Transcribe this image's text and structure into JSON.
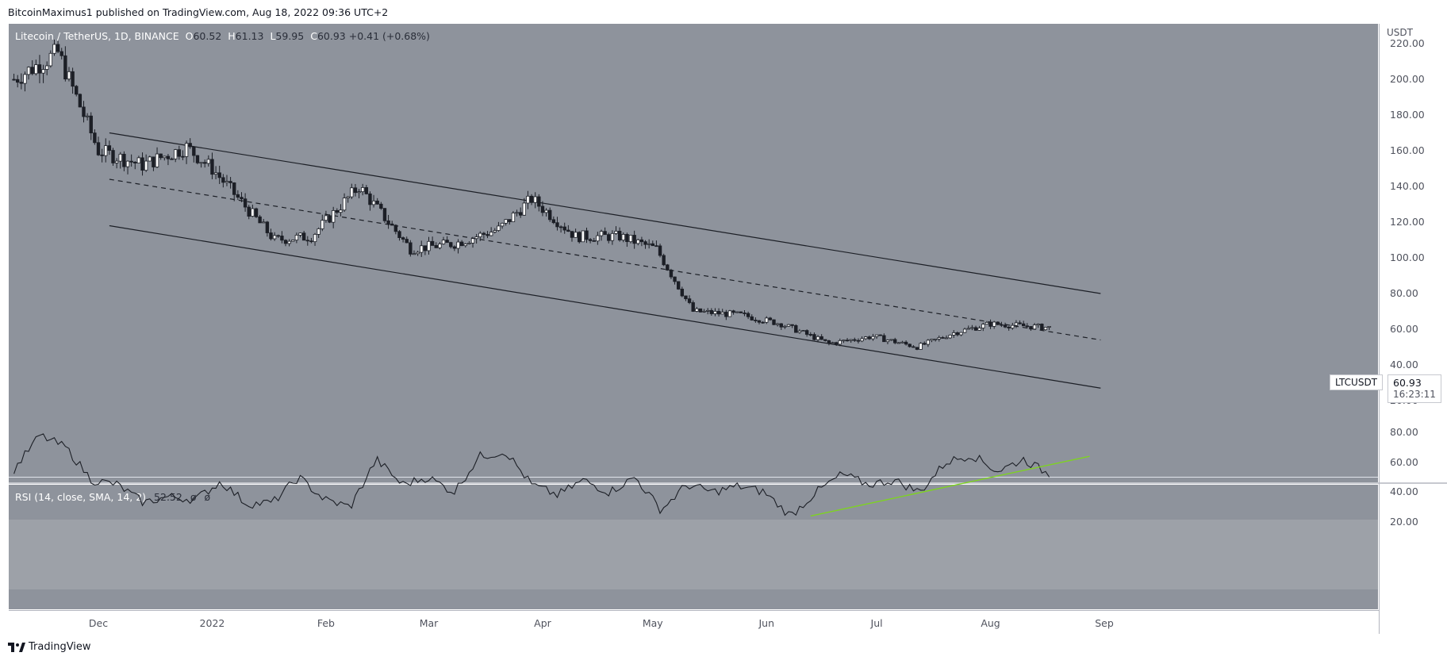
{
  "header": {
    "publisher_text": "BitcoinMaximus1 published on TradingView.com, Aug 18, 2022 09:36 UTC+2"
  },
  "chart": {
    "symbol_text": "Litecoin / TetherUS, 1D, BINANCE",
    "ohlc": [
      {
        "k": "O",
        "v": "60.52"
      },
      {
        "k": "H",
        "v": "61.13"
      },
      {
        "k": "L",
        "v": "59.95"
      },
      {
        "k": "C",
        "v": "60.93"
      },
      {
        "k": "",
        "v": "+0.41 (+0.68%)"
      }
    ],
    "unit": "USDT",
    "price_ticks": [
      "220.00",
      "200.00",
      "180.00",
      "160.00",
      "140.00",
      "120.00",
      "100.00",
      "80.00",
      "60.00",
      "40.00",
      "20.00"
    ],
    "symbol_tag": "LTCUSDT",
    "last_price": "60.93",
    "countdown": "16:23:11",
    "colors": {
      "panel": "#8e939c",
      "rsi_band": "#9da1a8",
      "candle": "#1c1f26",
      "trendline": "#7ed321"
    }
  },
  "rsi": {
    "legend": "RSI (14, close, SMA, 14, 2)",
    "value": "52.52",
    "extra_1": "ø",
    "extra_2": "ø",
    "ticks": [
      "80.00",
      "60.00",
      "40.00",
      "20.00"
    ]
  },
  "xaxis": {
    "labels": [
      "Dec",
      "2022",
      "Feb",
      "Mar",
      "Apr",
      "May",
      "Jun",
      "Jul",
      "Aug",
      "Sep"
    ]
  },
  "brand": {
    "name": "TradingView",
    "logo": "tradingview-logo-icon"
  },
  "chart_data": {
    "type": "candlestick",
    "title": "Litecoin / TetherUS, 1D, BINANCE",
    "ylabel": "USDT",
    "ylim": [
      20,
      230
    ],
    "x": [
      "2021-11-08",
      "2021-11-20",
      "2021-12-01",
      "2021-12-13",
      "2021-12-25",
      "2022-01-01",
      "2022-01-18",
      "2022-01-28",
      "2022-02-10",
      "2022-02-24",
      "2022-03-08",
      "2022-03-20",
      "2022-03-29",
      "2022-04-10",
      "2022-04-22",
      "2022-05-02",
      "2022-05-12",
      "2022-05-25",
      "2022-06-05",
      "2022-06-18",
      "2022-06-30",
      "2022-07-12",
      "2022-07-22",
      "2022-08-01",
      "2022-08-17"
    ],
    "close": [
      200,
      215,
      160,
      152,
      162,
      150,
      110,
      112,
      140,
      105,
      108,
      116,
      133,
      112,
      112,
      105,
      70,
      68,
      63,
      52,
      56,
      50,
      58,
      63,
      60.93
    ],
    "channel": {
      "upper": [
        [
          "2021-12-04",
          170
        ],
        [
          "2022-08-31",
          80
        ]
      ],
      "middle": [
        [
          "2021-12-04",
          144
        ],
        [
          "2022-08-31",
          54
        ]
      ],
      "lower": [
        [
          "2021-12-04",
          118
        ],
        [
          "2022-08-31",
          27
        ]
      ]
    },
    "rsi": {
      "ylim": [
        20,
        80
      ],
      "bands": [
        30,
        50,
        70
      ],
      "values": [
        55,
        78,
        70,
        48,
        45,
        33,
        37,
        35,
        47,
        32,
        33,
        50,
        35,
        30,
        62,
        45,
        50,
        40,
        64,
        67,
        45,
        38,
        48,
        40,
        50,
        28,
        45,
        40,
        44,
        40,
        24,
        40,
        52,
        45,
        48,
        40,
        60,
        65,
        54,
        62,
        52
      ],
      "trendline": [
        [
          "2022-06-13",
          24
        ],
        [
          "2022-08-28",
          64
        ]
      ]
    }
  }
}
